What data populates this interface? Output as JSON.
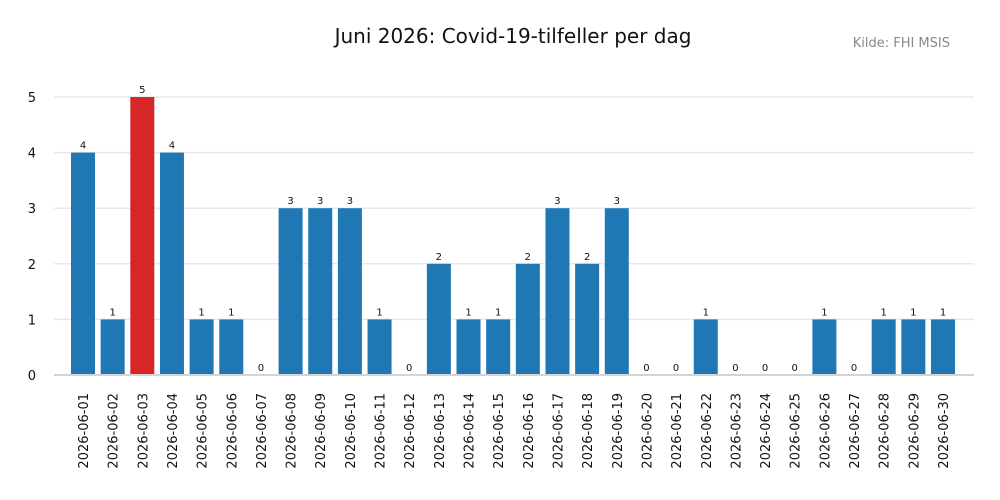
{
  "chart_data": {
    "type": "bar",
    "title": "Juni 2026: Covid-19-tilfeller per dag",
    "source": "Kilde: FHI MSIS",
    "xlabel": "",
    "ylabel": "",
    "ylim": [
      0,
      5
    ],
    "yticks": [
      0,
      1,
      2,
      3,
      4,
      5
    ],
    "grid": "horizontal",
    "highlight_index": 2,
    "colors": {
      "bar": "#1f77b4",
      "highlight": "#d62728"
    },
    "categories": [
      "2026-06-01",
      "2026-06-02",
      "2026-06-03",
      "2026-06-04",
      "2026-06-05",
      "2026-06-06",
      "2026-06-07",
      "2026-06-08",
      "2026-06-09",
      "2026-06-10",
      "2026-06-11",
      "2026-06-12",
      "2026-06-13",
      "2026-06-14",
      "2026-06-15",
      "2026-06-16",
      "2026-06-17",
      "2026-06-18",
      "2026-06-19",
      "2026-06-20",
      "2026-06-21",
      "2026-06-22",
      "2026-06-23",
      "2026-06-24",
      "2026-06-25",
      "2026-06-26",
      "2026-06-27",
      "2026-06-28",
      "2026-06-29",
      "2026-06-30"
    ],
    "values": [
      4,
      1,
      5,
      4,
      1,
      1,
      0,
      3,
      3,
      3,
      1,
      0,
      2,
      1,
      1,
      2,
      3,
      2,
      3,
      0,
      0,
      1,
      0,
      0,
      0,
      1,
      0,
      1,
      1,
      1
    ]
  }
}
